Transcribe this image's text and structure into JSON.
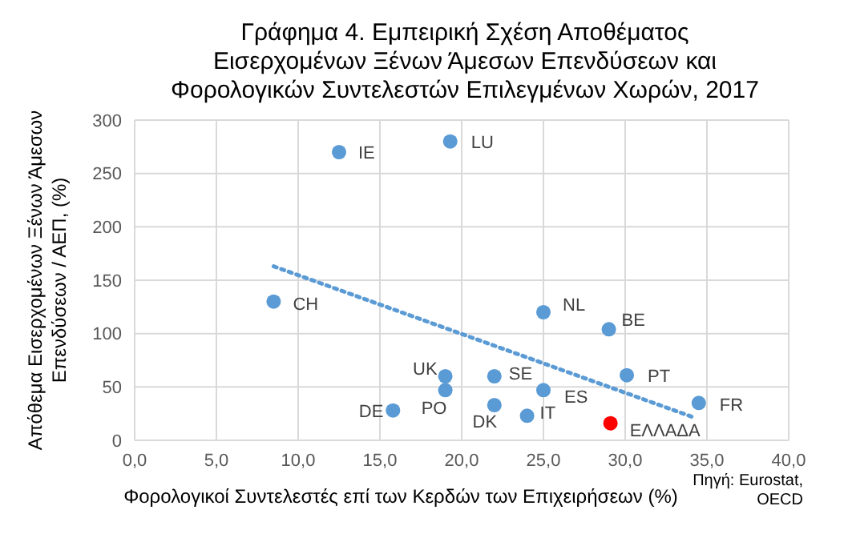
{
  "chart_data": {
    "type": "scatter",
    "title": "Γράφημα  4. Εμπειρική  Σχέση Αποθέματος\nΕισερχομένων  Ξένων Άμεσων  Επενδύσεων  και\nΦορολογικών  Συντελεστών Επιλεγμένων  Χωρών, 2017",
    "xlabel": "Φορολογικοί Συντελεστές επί των Κερδών των Επιχειρήσεων (%)",
    "ylabel": "Απόθεμα Εισερχομένων Ξένων Άμεσων Επενδύσεων / ΑΕΠ, (%)",
    "series": [
      {
        "type": "scatter",
        "x": [
          12.5,
          19.3,
          8.5,
          19.0,
          19.0,
          15.8,
          22.0,
          22.0,
          24.0,
          25.0,
          25.0,
          29.0,
          30.1,
          29.1,
          34.5
        ],
        "values": [
          270,
          280,
          130,
          60,
          47,
          28,
          60,
          33,
          23,
          47,
          120,
          104,
          61,
          16,
          35
        ],
        "color": "#5b9bd5",
        "colors": [
          "#5b9bd5",
          "#5b9bd5",
          "#5b9bd5",
          "#5b9bd5",
          "#5b9bd5",
          "#5b9bd5",
          "#5b9bd5",
          "#5b9bd5",
          "#5b9bd5",
          "#5b9bd5",
          "#5b9bd5",
          "#5b9bd5",
          "#5b9bd5",
          "#ff0000",
          "#5b9bd5"
        ],
        "marker": "circle"
      },
      {
        "type": "line",
        "x": [
          8.5,
          34.1
        ],
        "values": [
          163,
          22
        ],
        "color": "#5b9bd5",
        "line_style": "dotted",
        "marker": "none"
      }
    ],
    "annotations": [
      {
        "text": "IE",
        "x": 12.5,
        "y": 270
      },
      {
        "text": "LU",
        "x": 19.3,
        "y": 280
      },
      {
        "text": "CH",
        "x": 8.5,
        "y": 130
      },
      {
        "text": "UK",
        "x": 19.0,
        "y": 60
      },
      {
        "text": "PO",
        "x": 19.0,
        "y": 47
      },
      {
        "text": "DE",
        "x": 15.8,
        "y": 28
      },
      {
        "text": "SE",
        "x": 22.0,
        "y": 60
      },
      {
        "text": "DK",
        "x": 22.0,
        "y": 33
      },
      {
        "text": "IT",
        "x": 24.0,
        "y": 23
      },
      {
        "text": "ES",
        "x": 25.0,
        "y": 47
      },
      {
        "text": "NL",
        "x": 25.0,
        "y": 120
      },
      {
        "text": "BE",
        "x": 29.0,
        "y": 104
      },
      {
        "text": "PT",
        "x": 30.1,
        "y": 61
      },
      {
        "text": "ΕΛΛΑΔΑ",
        "x": 29.1,
        "y": 16
      },
      {
        "text": "FR",
        "x": 34.5,
        "y": 35
      },
      "Πηγή: Eurostat,\nOECD"
    ],
    "xlim": [
      0,
      40
    ],
    "xticks": [
      {
        "value": 0,
        "label": "0,0"
      },
      {
        "value": 5,
        "label": "5,0"
      },
      {
        "value": 10,
        "label": "10,0"
      },
      {
        "value": 15,
        "label": "15,0"
      },
      {
        "value": 20,
        "label": "20,0"
      },
      {
        "value": 25,
        "label": "25,0"
      },
      {
        "value": 30,
        "label": "30,0"
      },
      {
        "value": 35,
        "label": "35,0"
      },
      {
        "value": 40,
        "label": "40,0"
      }
    ],
    "ylim": [
      0,
      300
    ],
    "yticks": [
      0,
      50,
      100,
      150,
      200,
      250,
      300
    ],
    "grid": true,
    "legend": false
  }
}
